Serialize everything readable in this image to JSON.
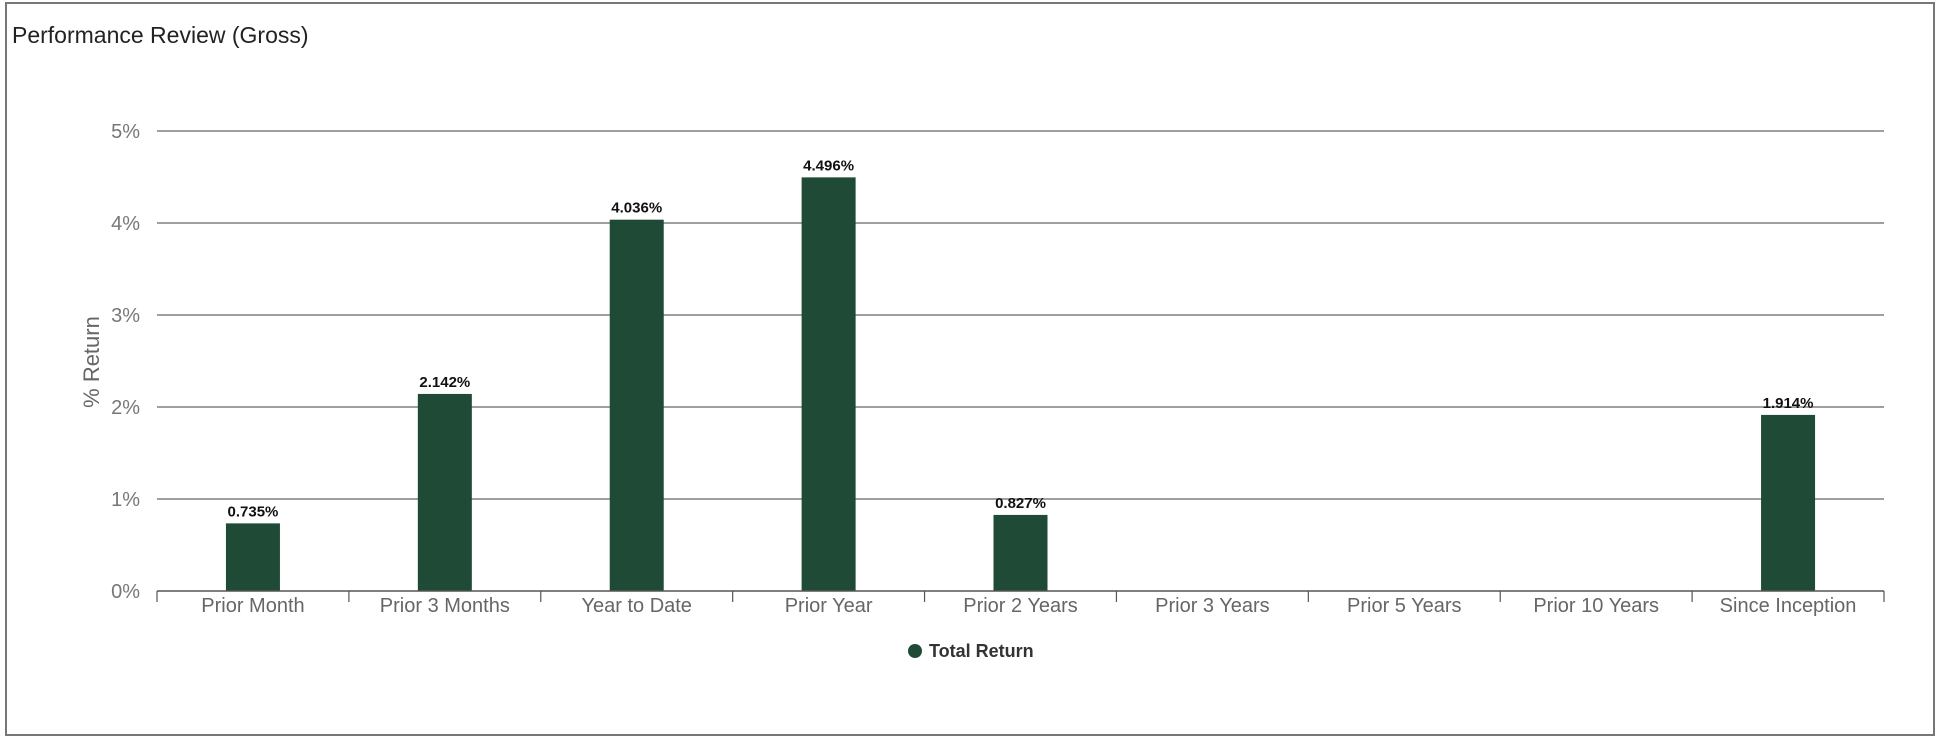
{
  "title": "Performance Review (Gross)",
  "chart_data": {
    "type": "bar",
    "ylabel": "% Return",
    "xlabel": "",
    "ylim": [
      0,
      5
    ],
    "yticks": [
      "0%",
      "1%",
      "2%",
      "3%",
      "4%",
      "5%"
    ],
    "grid": true,
    "legend_position": "bottom-center",
    "categories": [
      "Prior Month",
      "Prior 3 Months",
      "Year to Date",
      "Prior Year",
      "Prior 2 Years",
      "Prior 3 Years",
      "Prior 5 Years",
      "Prior 10 Years",
      "Since Inception"
    ],
    "series": [
      {
        "name": "Total Return",
        "color": "#1f4a36",
        "values": [
          0.735,
          2.142,
          4.036,
          4.496,
          0.827,
          null,
          null,
          null,
          1.914
        ],
        "labels": [
          "0.735%",
          "2.142%",
          "4.036%",
          "4.496%",
          "0.827%",
          "",
          "",
          "",
          "1.914%"
        ]
      }
    ]
  }
}
